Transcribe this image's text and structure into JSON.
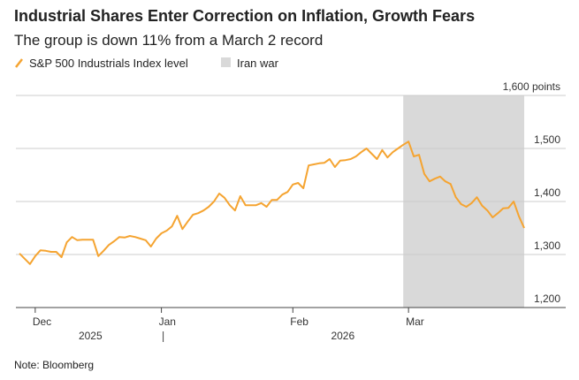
{
  "chart_data": {
    "type": "line",
    "title": "Industrial Shares Enter Correction on Inflation, Growth Fears",
    "subtitle": "The group is down 11% from a March 2 record",
    "note": "Note: Bloomberg",
    "years": [
      "2025",
      "2026"
    ],
    "categories": [
      null,
      null,
      null,
      "Dec",
      null,
      null,
      null,
      null,
      null,
      null,
      null,
      null,
      null,
      null,
      null,
      null,
      null,
      null,
      null,
      null,
      null,
      null,
      null,
      null,
      null,
      null,
      null,
      "Jan",
      null,
      null,
      null,
      null,
      null,
      null,
      null,
      null,
      null,
      null,
      null,
      null,
      null,
      null,
      null,
      null,
      null,
      null,
      null,
      null,
      null,
      null,
      null,
      null,
      "Feb",
      null,
      null,
      null,
      null,
      null,
      null,
      null,
      null,
      null,
      null,
      null,
      null,
      null,
      null,
      null,
      null,
      null,
      null,
      null,
      null,
      null,
      "Mar",
      null,
      null,
      null,
      null,
      null,
      null,
      null,
      null,
      null,
      null,
      null,
      null,
      null,
      null,
      null,
      null,
      null,
      null,
      null,
      null,
      null,
      null
    ],
    "series": [
      {
        "name": "S&P 500 Industrials Index level",
        "color": "#f5a431",
        "values": [
          1302,
          1292,
          1282,
          1297,
          1308,
          1307,
          1305,
          1305,
          1295,
          1323,
          1333,
          1327,
          1328,
          1328,
          1328,
          1297,
          1307,
          1318,
          1325,
          1333,
          1332,
          1335,
          1333,
          1330,
          1327,
          1315,
          1330,
          1340,
          1345,
          1353,
          1373,
          1348,
          1362,
          1375,
          1378,
          1383,
          1390,
          1400,
          1415,
          1407,
          1393,
          1383,
          1410,
          1393,
          1393,
          1393,
          1397,
          1390,
          1403,
          1403,
          1413,
          1418,
          1432,
          1435,
          1425,
          1468,
          1470,
          1472,
          1473,
          1480,
          1465,
          1477,
          1478,
          1480,
          1485,
          1493,
          1500,
          1490,
          1480,
          1497,
          1483,
          1493,
          1500,
          1507,
          1513,
          1485,
          1488,
          1452,
          1438,
          1443,
          1447,
          1438,
          1433,
          1408,
          1395,
          1390,
          1397,
          1408,
          1392,
          1383,
          1370,
          1378,
          1387,
          1388,
          1400,
          1372,
          1350
        ]
      }
    ],
    "highlight": {
      "name": "Iran war",
      "color": "#d9d9d9",
      "span": [
        73,
        96
      ]
    },
    "ylim": [
      1200,
      1600
    ],
    "yticks": [
      {
        "value": 1200,
        "label": "1,200"
      },
      {
        "value": 1300,
        "label": "1,300"
      },
      {
        "value": 1400,
        "label": "1,400"
      },
      {
        "value": 1500,
        "label": "1,500"
      },
      {
        "value": 1600,
        "label": "1,600 points"
      }
    ],
    "grid": true
  }
}
